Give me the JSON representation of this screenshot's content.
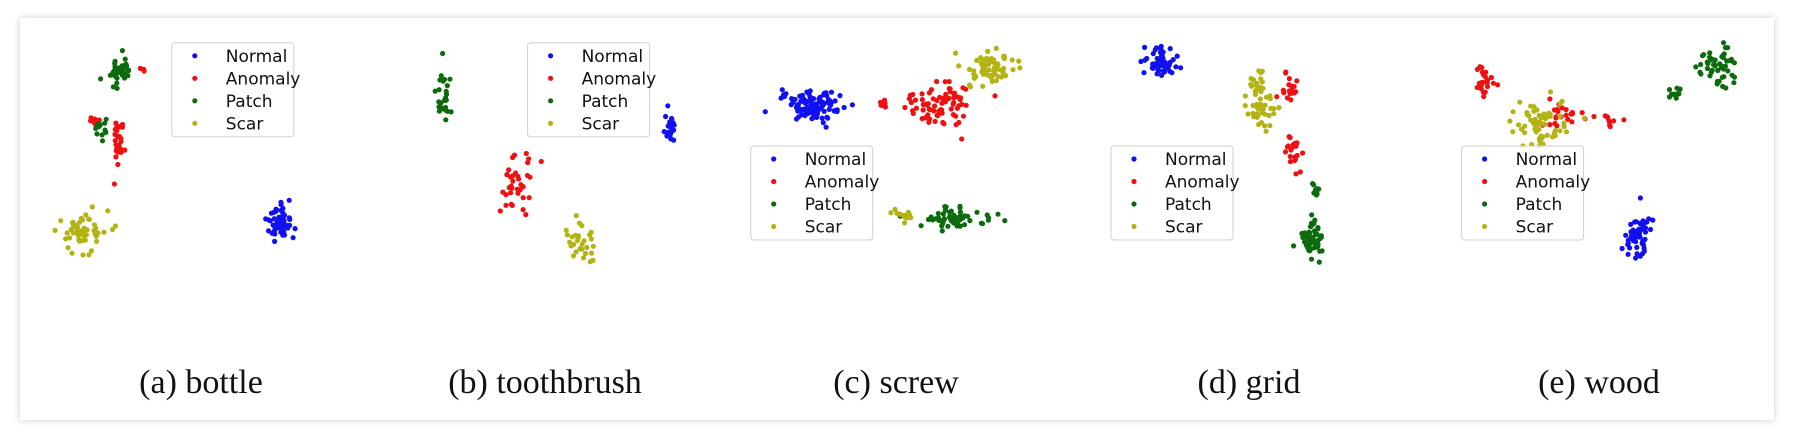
{
  "legend_labels": [
    "Normal",
    "Anomaly",
    "Patch",
    "Scar"
  ],
  "class_colors": {
    "Normal": "#1010f0",
    "Anomaly": "#ee1111",
    "Patch": "#0d6b0d",
    "Scar": "#b3b315"
  },
  "chart_data": [
    {
      "type": "scatter",
      "caption": "(a) bottle",
      "legend_position": "upper-center",
      "series": [
        {
          "name": "Normal",
          "color": "#1010f0",
          "clusters": [
            {
              "center": [
                0.79,
                0.23
              ],
              "spread": [
                0.035,
                0.065
              ],
              "count": 55
            }
          ]
        },
        {
          "name": "Anomaly",
          "color": "#ee1111",
          "clusters": [
            {
              "center": [
                0.24,
                0.58
              ],
              "spread": [
                0.02,
                0.09
              ],
              "count": 30
            },
            {
              "center": [
                0.15,
                0.66
              ],
              "spread": [
                0.015,
                0.035
              ],
              "count": 10
            },
            {
              "center": [
                0.32,
                0.87
              ],
              "spread": [
                0.008,
                0.01
              ],
              "count": 3
            }
          ]
        },
        {
          "name": "Patch",
          "color": "#0d6b0d",
          "clusters": [
            {
              "center": [
                0.24,
                0.86
              ],
              "spread": [
                0.04,
                0.05
              ],
              "count": 40
            },
            {
              "center": [
                0.18,
                0.62
              ],
              "spread": [
                0.02,
                0.05
              ],
              "count": 12
            }
          ]
        },
        {
          "name": "Scar",
          "color": "#b3b315",
          "clusters": [
            {
              "center": [
                0.11,
                0.19
              ],
              "spread": [
                0.07,
                0.07
              ],
              "count": 55
            }
          ]
        }
      ]
    },
    {
      "type": "scatter",
      "caption": "(b) toothbrush",
      "legend_position": "upper-center",
      "series": [
        {
          "name": "Normal",
          "color": "#1010f0",
          "clusters": [
            {
              "center": [
                0.93,
                0.62
              ],
              "spread": [
                0.015,
                0.07
              ],
              "count": 25
            }
          ]
        },
        {
          "name": "Anomaly",
          "color": "#ee1111",
          "clusters": [
            {
              "center": [
                0.38,
                0.4
              ],
              "spread": [
                0.05,
                0.1
              ],
              "count": 35
            }
          ]
        },
        {
          "name": "Patch",
          "color": "#0d6b0d",
          "clusters": [
            {
              "center": [
                0.12,
                0.77
              ],
              "spread": [
                0.025,
                0.11
              ],
              "count": 25
            }
          ]
        },
        {
          "name": "Scar",
          "color": "#b3b315",
          "clusters": [
            {
              "center": [
                0.6,
                0.16
              ],
              "spread": [
                0.05,
                0.08
              ],
              "count": 30
            }
          ]
        }
      ]
    },
    {
      "type": "scatter",
      "caption": "(c) screw",
      "legend_position": "lower-left",
      "series": [
        {
          "name": "Normal",
          "color": "#1010f0",
          "clusters": [
            {
              "center": [
                0.17,
                0.72
              ],
              "spread": [
                0.08,
                0.05
              ],
              "count": 110
            }
          ]
        },
        {
          "name": "Anomaly",
          "color": "#ee1111",
          "clusters": [
            {
              "center": [
                0.58,
                0.72
              ],
              "spread": [
                0.09,
                0.07
              ],
              "count": 80
            },
            {
              "center": [
                0.4,
                0.73
              ],
              "spread": [
                0.01,
                0.02
              ],
              "count": 8
            }
          ]
        },
        {
          "name": "Patch",
          "color": "#0d6b0d",
          "clusters": [
            {
              "center": [
                0.62,
                0.25
              ],
              "spread": [
                0.1,
                0.03
              ],
              "count": 65
            }
          ]
        },
        {
          "name": "Scar",
          "color": "#b3b315",
          "clusters": [
            {
              "center": [
                0.74,
                0.87
              ],
              "spread": [
                0.07,
                0.07
              ],
              "count": 65
            },
            {
              "center": [
                0.46,
                0.26
              ],
              "spread": [
                0.03,
                0.03
              ],
              "count": 15
            }
          ]
        }
      ]
    },
    {
      "type": "scatter",
      "caption": "(d) grid",
      "legend_position": "lower-left",
      "series": [
        {
          "name": "Normal",
          "color": "#1010f0",
          "clusters": [
            {
              "center": [
                0.13,
                0.9
              ],
              "spread": [
                0.05,
                0.06
              ],
              "count": 60
            }
          ]
        },
        {
          "name": "Anomaly",
          "color": "#ee1111",
          "clusters": [
            {
              "center": [
                0.58,
                0.51
              ],
              "spread": [
                0.02,
                0.06
              ],
              "count": 20
            },
            {
              "center": [
                0.56,
                0.79
              ],
              "spread": [
                0.025,
                0.05
              ],
              "count": 18
            }
          ]
        },
        {
          "name": "Patch",
          "color": "#0d6b0d",
          "clusters": [
            {
              "center": [
                0.64,
                0.16
              ],
              "spread": [
                0.03,
                0.07
              ],
              "count": 55
            },
            {
              "center": [
                0.65,
                0.36
              ],
              "spread": [
                0.012,
                0.025
              ],
              "count": 8
            }
          ]
        },
        {
          "name": "Scar",
          "color": "#b3b315",
          "clusters": [
            {
              "center": [
                0.47,
                0.72
              ],
              "spread": [
                0.04,
                0.1
              ],
              "count": 55
            }
          ]
        }
      ]
    },
    {
      "type": "scatter",
      "caption": "(e) wood",
      "legend_position": "lower-left",
      "series": [
        {
          "name": "Normal",
          "color": "#1010f0",
          "clusters": [
            {
              "center": [
                0.6,
                0.18
              ],
              "spread": [
                0.04,
                0.1
              ],
              "count": 55
            }
          ]
        },
        {
          "name": "Anomaly",
          "color": "#ee1111",
          "clusters": [
            {
              "center": [
                0.05,
                0.82
              ],
              "spread": [
                0.03,
                0.05
              ],
              "count": 25
            },
            {
              "center": [
                0.33,
                0.68
              ],
              "spread": [
                0.07,
                0.04
              ],
              "count": 22
            },
            {
              "center": [
                0.48,
                0.64
              ],
              "spread": [
                0.04,
                0.04
              ],
              "count": 10
            }
          ]
        },
        {
          "name": "Patch",
          "color": "#0d6b0d",
          "clusters": [
            {
              "center": [
                0.89,
                0.88
              ],
              "spread": [
                0.05,
                0.07
              ],
              "count": 50
            },
            {
              "center": [
                0.73,
                0.76
              ],
              "spread": [
                0.03,
                0.02
              ],
              "count": 12
            }
          ]
        },
        {
          "name": "Scar",
          "color": "#b3b315",
          "clusters": [
            {
              "center": [
                0.25,
                0.64
              ],
              "spread": [
                0.08,
                0.07
              ],
              "count": 70
            }
          ]
        }
      ]
    }
  ]
}
